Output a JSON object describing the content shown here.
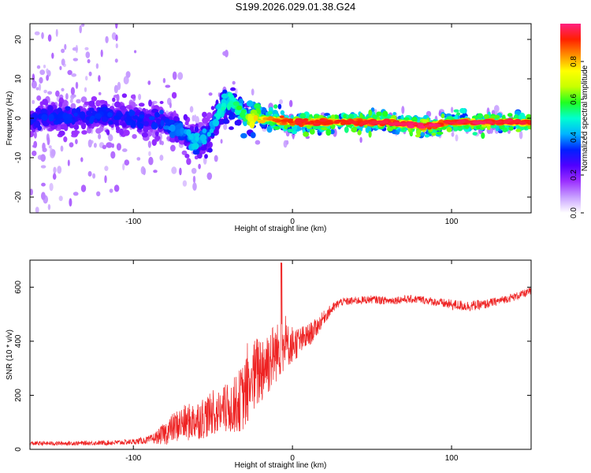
{
  "title": "S199.2026.029.01.38.G24",
  "chart_data": [
    {
      "type": "heatmap",
      "title": "",
      "xlabel": "Height of straight line (km)",
      "ylabel": "Frequency (Hz)",
      "xlim": [
        -165,
        150
      ],
      "ylim": [
        -24,
        24
      ],
      "xticks": [
        "-100",
        "0",
        "100"
      ],
      "xtick_values": [
        -100,
        0,
        100
      ],
      "yticks": [
        "-20",
        "-10",
        "0",
        "10",
        "20"
      ],
      "ytick_values": [
        -20,
        -10,
        0,
        10,
        20
      ],
      "colorbar": {
        "label": "Normalized spectral amplitude",
        "range": [
          0,
          1
        ],
        "ticks": [
          "0.0",
          "0.2",
          "0.4",
          "0.6",
          "0.8"
        ],
        "tick_values": [
          0.0,
          0.2,
          0.4,
          0.6,
          0.8
        ],
        "stops": [
          "#ffffff",
          "#c8a0ff",
          "#9b30ff",
          "#5000ff",
          "#0020ff",
          "#00b4ff",
          "#00ffd0",
          "#20ff20",
          "#c8ff00",
          "#ffff00",
          "#ff9000",
          "#ff2000",
          "#ff2080"
        ]
      },
      "frequency_ridge": {
        "x": [
          -165,
          -150,
          -120,
          -100,
          -90,
          -80,
          -70,
          -65,
          -60,
          -55,
          -50,
          -45,
          -40,
          -35,
          -30,
          -25,
          -20,
          -10,
          0,
          20,
          40,
          60,
          75,
          80,
          90,
          95,
          100,
          120,
          150
        ],
        "freq_hz": [
          0,
          0.5,
          0.5,
          0,
          -0.5,
          -1,
          -3,
          -5,
          -6,
          -5,
          -2,
          2,
          4,
          3,
          1,
          0.5,
          0,
          -0.5,
          -1,
          -1,
          -1,
          -1,
          -1.5,
          -2,
          -2,
          -1,
          -1,
          -1,
          -1
        ],
        "amplitude": [
          0.3,
          0.3,
          0.3,
          0.3,
          0.3,
          0.35,
          0.35,
          0.4,
          0.4,
          0.4,
          0.4,
          0.45,
          0.5,
          0.5,
          0.55,
          0.65,
          0.75,
          0.85,
          0.9,
          0.9,
          0.9,
          0.92,
          0.95,
          0.95,
          0.95,
          0.9,
          0.92,
          0.95,
          0.9
        ]
      }
    },
    {
      "type": "line",
      "title": "",
      "xlabel": "Height of straight line (km)",
      "ylabel": "SNR (10 * v/v)",
      "xlim": [
        -165,
        150
      ],
      "ylim": [
        0,
        700
      ],
      "xticks": [
        "-100",
        "0",
        "100"
      ],
      "xtick_values": [
        -100,
        0,
        100
      ],
      "yticks": [
        "0",
        "200",
        "400",
        "600"
      ],
      "ytick_values": [
        0,
        200,
        400,
        600
      ],
      "color": "#ee2222",
      "series": [
        {
          "name": "SNR",
          "x": [
            -165,
            -150,
            -130,
            -110,
            -100,
            -90,
            -85,
            -80,
            -75,
            -70,
            -65,
            -60,
            -55,
            -50,
            -45,
            -40,
            -35,
            -30,
            -25,
            -20,
            -15,
            -10,
            -5,
            0,
            5,
            10,
            15,
            20,
            25,
            30,
            40,
            50,
            60,
            70,
            80,
            90,
            100,
            110,
            120,
            130,
            140,
            150
          ],
          "y": [
            22,
            22,
            23,
            25,
            28,
            35,
            45,
            60,
            80,
            95,
            100,
            110,
            120,
            130,
            140,
            150,
            170,
            200,
            260,
            300,
            330,
            360,
            380,
            390,
            400,
            420,
            450,
            490,
            520,
            545,
            550,
            555,
            550,
            555,
            555,
            545,
            535,
            530,
            535,
            550,
            565,
            585
          ],
          "noise": [
            8,
            8,
            8,
            10,
            10,
            15,
            25,
            45,
            55,
            65,
            70,
            75,
            80,
            80,
            85,
            95,
            110,
            130,
            140,
            140,
            130,
            110,
            90,
            70,
            55,
            45,
            35,
            25,
            20,
            15,
            15,
            15,
            15,
            15,
            15,
            15,
            20,
            20,
            18,
            15,
            15,
            15
          ]
        }
      ]
    }
  ]
}
